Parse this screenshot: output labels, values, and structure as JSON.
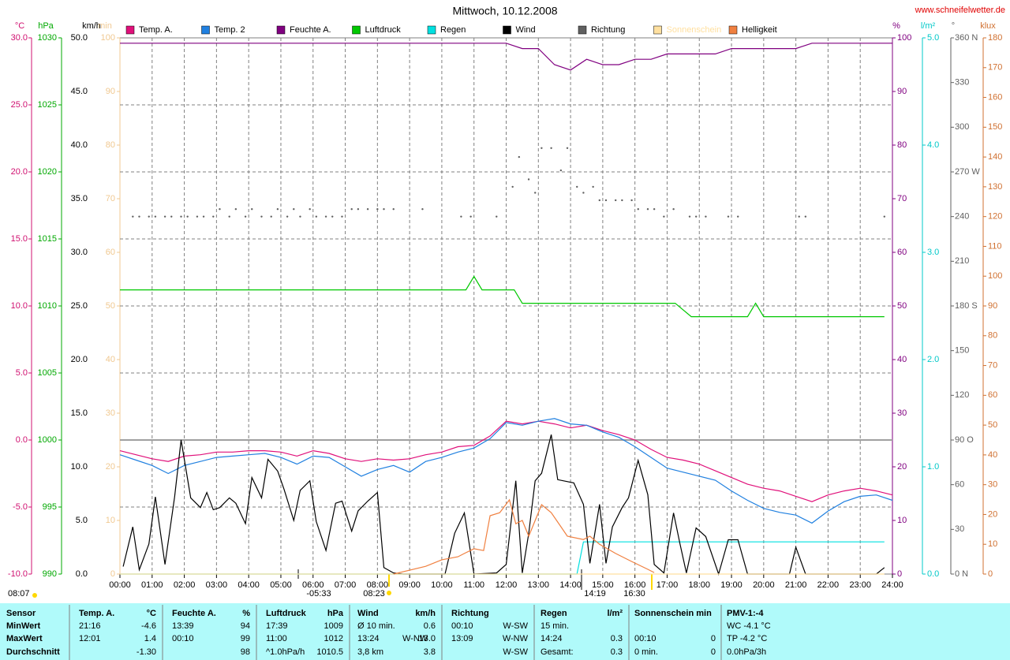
{
  "chart_data": {
    "type": "line",
    "title": "Mittwoch, 10.12.2008",
    "source": "www.schneifelwetter.de",
    "grid": true,
    "x": [
      0,
      0.5,
      1,
      1.5,
      2,
      2.5,
      3,
      3.5,
      4,
      4.5,
      5,
      5.5,
      6,
      6.5,
      7,
      7.5,
      8,
      8.5,
      9,
      9.5,
      10,
      10.5,
      11,
      11.5,
      12,
      12.5,
      13,
      13.5,
      14,
      14.5,
      15,
      15.5,
      16,
      16.5,
      17,
      17.5,
      18,
      18.5,
      19,
      19.5,
      20,
      20.5,
      21,
      21.5,
      22,
      22.5,
      23,
      23.5,
      24
    ],
    "xlim": [
      0,
      24
    ],
    "xticks": [
      {
        "value": 0,
        "label": "00:00"
      },
      {
        "value": 1,
        "label": "01:00"
      },
      {
        "value": 2,
        "label": "02:00"
      },
      {
        "value": 3,
        "label": "03:00"
      },
      {
        "value": 4,
        "label": "04:00"
      },
      {
        "value": 5,
        "label": "05:00"
      },
      {
        "value": 6,
        "label": "06:00"
      },
      {
        "value": 7,
        "label": "07:00"
      },
      {
        "value": 8,
        "label": "08:00"
      },
      {
        "value": 9,
        "label": "09:00"
      },
      {
        "value": 10,
        "label": "10:00"
      },
      {
        "value": 11,
        "label": "11:00"
      },
      {
        "value": 12,
        "label": "12:00"
      },
      {
        "value": 13,
        "label": "13:00"
      },
      {
        "value": 14,
        "label": "14:00"
      },
      {
        "value": 15,
        "label": "15:00"
      },
      {
        "value": 16,
        "label": "16:00"
      },
      {
        "value": 17,
        "label": "17:00"
      },
      {
        "value": 18,
        "label": "18:00"
      },
      {
        "value": 19,
        "label": "19:00"
      },
      {
        "value": 20,
        "label": "20:00"
      },
      {
        "value": 21,
        "label": "21:00"
      },
      {
        "value": 22,
        "label": "22:00"
      },
      {
        "value": 23,
        "label": "23:00"
      },
      {
        "value": 24,
        "label": "24:00"
      }
    ],
    "axes": [
      {
        "label": "°C",
        "color": "#d01070",
        "lim": [
          -10,
          30
        ],
        "ticks": [
          {
            "value": -10,
            "label": "-10.0"
          },
          {
            "value": -5,
            "label": "-5.0"
          },
          {
            "value": 0,
            "label": "0.0"
          },
          {
            "value": 5,
            "label": "5.0"
          },
          {
            "value": 10,
            "label": "10.0"
          },
          {
            "value": 15,
            "label": "15.0"
          },
          {
            "value": 20,
            "label": "20.0"
          },
          {
            "value": 25,
            "label": "25.0"
          },
          {
            "value": 30,
            "label": "30.0"
          }
        ]
      },
      {
        "label": "hPa",
        "color": "#00a800",
        "lim": [
          990,
          1030
        ],
        "ticks": [
          990,
          995,
          1000,
          1005,
          1010,
          1015,
          1020,
          1025,
          1030
        ]
      },
      {
        "label": "km/h",
        "color": "#000000",
        "lim": [
          0,
          50
        ],
        "ticks": [
          {
            "value": 0,
            "label": "0.0"
          },
          {
            "value": 5,
            "label": "5.0"
          },
          {
            "value": 10,
            "label": "10.0"
          },
          {
            "value": 15,
            "label": "15.0"
          },
          {
            "value": 20,
            "label": "20.0"
          },
          {
            "value": 25,
            "label": "25.0"
          },
          {
            "value": 30,
            "label": "30.0"
          },
          {
            "value": 35,
            "label": "35.0"
          },
          {
            "value": 40,
            "label": "40.0"
          },
          {
            "value": 45,
            "label": "45.0"
          },
          {
            "value": 50,
            "label": "50.0"
          }
        ]
      },
      {
        "label": "min",
        "color": "#f0c890",
        "lim": [
          0,
          100
        ],
        "ticks": [
          0,
          10,
          20,
          30,
          40,
          50,
          60,
          70,
          80,
          90,
          100
        ]
      },
      {
        "label": "%",
        "color": "#800080",
        "lim": [
          0,
          100
        ],
        "ticks": [
          0,
          10,
          20,
          30,
          40,
          50,
          60,
          70,
          80,
          90,
          100
        ]
      },
      {
        "label": "l/m²",
        "color": "#00c8c8",
        "lim": [
          0,
          5
        ],
        "ticks": [
          {
            "value": 0,
            "label": "0.0"
          },
          {
            "value": 1,
            "label": "1.0"
          },
          {
            "value": 2,
            "label": "2.0"
          },
          {
            "value": 3,
            "label": "3.0"
          },
          {
            "value": 4,
            "label": "4.0"
          },
          {
            "value": 5,
            "label": "5.0"
          }
        ]
      },
      {
        "label": "°",
        "color": "#606060",
        "lim": [
          0,
          360
        ],
        "ticks": [
          {
            "value": 0,
            "label": "0 N"
          },
          30,
          60,
          {
            "value": 90,
            "label": "90 O"
          },
          120,
          150,
          {
            "value": 180,
            "label": "180 S"
          },
          210,
          240,
          {
            "value": 270,
            "label": "270 W"
          },
          300,
          330,
          {
            "value": 360,
            "label": "360 N"
          }
        ]
      },
      {
        "label": "klux",
        "color": "#d07030",
        "lim": [
          0,
          180
        ],
        "ticks": [
          0,
          10,
          20,
          30,
          40,
          50,
          60,
          70,
          80,
          90,
          100,
          110,
          120,
          130,
          140,
          150,
          160,
          170,
          180
        ]
      }
    ],
    "series": [
      {
        "name": "Temp. A.",
        "color": "#e0107a",
        "axis": "°C",
        "values": [
          -0.8,
          -1.1,
          -1.4,
          -1.6,
          -1.2,
          -1.1,
          -0.9,
          -0.9,
          -0.8,
          -0.8,
          -0.9,
          -1.2,
          -0.8,
          -1.0,
          -1.4,
          -1.6,
          -1.4,
          -1.5,
          -1.4,
          -1.1,
          -0.9,
          -0.5,
          -0.4,
          0.3,
          1.4,
          1.2,
          1.4,
          1.2,
          0.9,
          1.1,
          0.7,
          0.4,
          0.0,
          -0.7,
          -1.3,
          -1.5,
          -1.8,
          -2.3,
          -2.8,
          -3.3,
          -3.6,
          -3.8,
          -4.2,
          -4.6,
          -4.1,
          -3.8,
          -3.6,
          -3.8,
          -4.1
        ]
      },
      {
        "name": "Temp. 2",
        "color": "#2080e0",
        "axis": "°C",
        "values": [
          -1.1,
          -1.5,
          -1.9,
          -2.5,
          -1.9,
          -1.6,
          -1.3,
          -1.2,
          -1.1,
          -1.0,
          -1.3,
          -1.8,
          -1.2,
          -1.3,
          -2.0,
          -2.7,
          -2.2,
          -1.9,
          -2.4,
          -1.6,
          -1.3,
          -0.9,
          -0.6,
          0.1,
          1.3,
          1.1,
          1.4,
          1.6,
          1.2,
          1.1,
          0.6,
          0.2,
          -0.5,
          -1.3,
          -2.1,
          -2.4,
          -2.7,
          -3.0,
          -3.8,
          -4.5,
          -5.1,
          -5.4,
          -5.6,
          -6.2,
          -5.3,
          -4.6,
          -4.2,
          -4.1,
          -4.5
        ]
      },
      {
        "name": "Feuchte A.",
        "color": "#800080",
        "axis": "%",
        "values": [
          99,
          99,
          99,
          99,
          99,
          99,
          99,
          99,
          99,
          99,
          99,
          99,
          99,
          99,
          99,
          99,
          99,
          99,
          99,
          99,
          99,
          99,
          99,
          99,
          99,
          98,
          98,
          95,
          94,
          96,
          95,
          95,
          96,
          96,
          97,
          97,
          97,
          97,
          98,
          98,
          98,
          98,
          98,
          99,
          99,
          99,
          99,
          99,
          99
        ]
      },
      {
        "name": "Luftdruck",
        "color": "#00c800",
        "axis": "hPa",
        "x": [
          0,
          10.75,
          11,
          11.25,
          12.25,
          12.5,
          17.25,
          17.75,
          19.5,
          19.75,
          20,
          23.75
        ],
        "values": [
          1011.2,
          1011.2,
          1012.2,
          1011.2,
          1011.2,
          1010.2,
          1010.2,
          1009.2,
          1009.2,
          1010.2,
          1009.2,
          1009.2
        ]
      },
      {
        "name": "Regen",
        "color": "#00e0e0",
        "axis": "l/m²",
        "x": [
          0,
          14.2,
          14.4,
          23.75
        ],
        "values": [
          0,
          0,
          0.3,
          0.3
        ]
      },
      {
        "name": "Wind",
        "color": "#000000",
        "axis": "km/h",
        "x": [
          0.1,
          0.4,
          0.6,
          0.9,
          1.1,
          1.4,
          1.7,
          1.9,
          2.2,
          2.5,
          2.7,
          2.9,
          3.1,
          3.4,
          3.6,
          3.9,
          4.1,
          4.4,
          4.6,
          4.9,
          5.1,
          5.4,
          5.6,
          5.9,
          6.1,
          6.4,
          6.7,
          6.9,
          7.2,
          7.4,
          7.7,
          8.0,
          8.2,
          8.5,
          8.8,
          10.1,
          10.4,
          10.7,
          11.0,
          11.7,
          12.0,
          12.3,
          12.5,
          12.7,
          12.9,
          13.1,
          13.4,
          13.6,
          14.1,
          14.4,
          14.6,
          14.9,
          15.1,
          15.3,
          15.6,
          15.8,
          16.1,
          16.4,
          16.6,
          16.9,
          17.2,
          17.4,
          17.6,
          17.9,
          18.2,
          18.6,
          18.9,
          19.2,
          19.5,
          20.8,
          21.0,
          21.3,
          23.5,
          23.75
        ],
        "values": [
          0.7,
          4.4,
          0.4,
          2.8,
          7.2,
          0.9,
          7.2,
          12.5,
          7.1,
          6.2,
          7.6,
          6.0,
          6.2,
          7.1,
          6.6,
          4.7,
          9.0,
          7.1,
          10.7,
          9.6,
          7.9,
          5.0,
          7.8,
          8.7,
          4.9,
          2.2,
          6.6,
          6.8,
          4.0,
          5.9,
          6.8,
          7.6,
          0.6,
          0.1,
          0,
          0,
          3.8,
          5.7,
          0,
          0.1,
          0.9,
          8.7,
          0.1,
          3.8,
          8.7,
          9.4,
          13.0,
          8.8,
          8.5,
          6.5,
          1.0,
          6.5,
          1.0,
          4.4,
          6.2,
          7.1,
          10.6,
          7.4,
          0.9,
          0.1,
          5.7,
          2.8,
          0.1,
          4.3,
          3.5,
          0,
          3.2,
          3.2,
          0,
          0,
          2.5,
          0,
          0,
          0.6
        ]
      },
      {
        "name": "Richtung",
        "color": "#606060",
        "axis": "°",
        "marker": "dot",
        "x": [
          0.4,
          0.6,
          0.9,
          1.1,
          1.4,
          1.6,
          1.9,
          2.1,
          2.4,
          2.6,
          2.9,
          3.1,
          3.4,
          3.6,
          3.9,
          4.1,
          4.4,
          4.7,
          4.9,
          5.2,
          5.4,
          5.6,
          5.9,
          6.1,
          6.4,
          6.6,
          6.9,
          7.2,
          7.4,
          7.7,
          8.0,
          8.2,
          8.5,
          9.4,
          10.6,
          10.9,
          11.7,
          12.2,
          12.4,
          12.7,
          12.9,
          13.1,
          13.4,
          13.7,
          13.9,
          14.2,
          14.4,
          14.7,
          14.9,
          15.1,
          15.4,
          15.6,
          15.9,
          16.1,
          16.4,
          16.6,
          16.9,
          17.2,
          17.7,
          17.9,
          18.2,
          18.9,
          19.2,
          21.1,
          21.3,
          23.75
        ],
        "values": [
          240,
          240,
          240,
          240,
          240,
          240,
          240,
          240,
          240,
          240,
          240,
          245,
          240,
          245,
          240,
          245,
          240,
          240,
          245,
          240,
          245,
          240,
          245,
          240,
          240,
          240,
          240,
          245,
          245,
          245,
          245,
          245,
          245,
          245,
          240,
          240,
          240,
          260,
          280,
          265,
          256,
          286,
          286,
          271,
          286,
          260,
          256,
          260,
          251,
          251,
          251,
          251,
          251,
          245,
          245,
          245,
          240,
          245,
          240,
          240,
          240,
          240,
          240,
          240,
          240,
          240
        ]
      },
      {
        "name": "Sonnenschein",
        "color": "#ffe0a0",
        "axis": "min",
        "x": [
          0,
          23.75
        ],
        "values": [
          0,
          0
        ]
      },
      {
        "name": "Helligkeit",
        "color": "#f08040",
        "axis": "klux",
        "x": [
          8.5,
          9.5,
          10.0,
          10.5,
          10.7,
          11.0,
          11.3,
          11.5,
          11.8,
          12.1,
          12.3,
          12.5,
          12.7,
          13.1,
          13.4,
          13.7,
          13.9,
          14.4,
          14.6,
          14.9,
          15.4,
          15.9,
          16.4,
          16.6
        ],
        "values": [
          0,
          2.6,
          4.8,
          5.8,
          6.9,
          8.5,
          7.9,
          19.6,
          20.6,
          24.9,
          16.9,
          18.0,
          12.7,
          23.3,
          20.6,
          15.9,
          12.7,
          11.6,
          12.7,
          10.0,
          6.9,
          4.2,
          1.6,
          0.5
        ]
      }
    ],
    "annotations": [
      "08:07",
      "-05:33",
      "08:23",
      "14:19",
      "16:30"
    ]
  },
  "table": {
    "header": [
      "Sensor",
      "Temp. A.",
      "°C",
      "Feuchte A.",
      "%",
      "Luftdruck",
      "hPa",
      "Wind",
      null,
      "km/h",
      "Richtung",
      null,
      "Regen",
      "l/m²",
      "Sonnenschein min",
      null,
      "PMV-1:-4"
    ],
    "rows": [
      [
        "MinWert",
        "21:16",
        "-4.6",
        "13:39",
        "94",
        "17:39",
        "1009",
        "Ø 10 min.",
        null,
        "0.6",
        "00:10",
        "W-SW",
        "15 min.",
        null,
        null,
        null,
        "WC -4.1 °C"
      ],
      [
        "MaxWert",
        "12:01",
        "1.4",
        "00:10",
        "99",
        "11:00",
        "1012",
        "13:24",
        "W-NW",
        "13.0",
        "13:09",
        "W-NW",
        "14:24",
        "0.3",
        "00:10",
        "0",
        "TP -4.2 °C"
      ],
      [
        "Durchschnitt",
        null,
        "-1.30",
        null,
        "98",
        "^1.0hPa/h",
        "1010.5",
        "3,8 km",
        null,
        "3.8",
        null,
        "W-SW",
        "Gesamt:",
        "0.3",
        "0 min.",
        "0",
        "0.0hPa/3h"
      ]
    ]
  }
}
